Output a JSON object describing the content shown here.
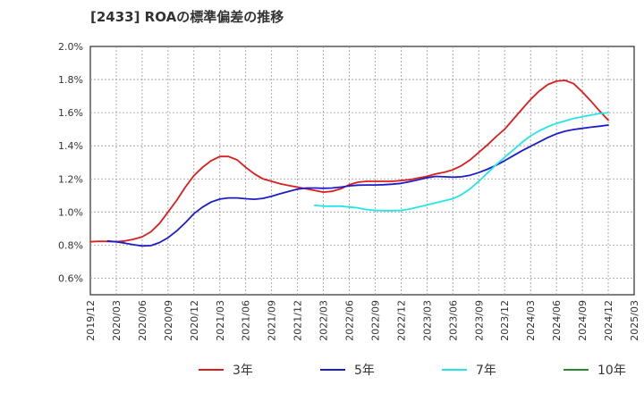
{
  "chart_data": {
    "type": "line",
    "title": "[2433]  ROAの標準偏差の推移",
    "xlabel": "",
    "ylabel": "",
    "ylim": [
      0.5,
      2.0
    ],
    "xlim": [
      "2019/12",
      "2025/03"
    ],
    "y_ticks": [
      "0.6%",
      "0.8%",
      "1.0%",
      "1.2%",
      "1.4%",
      "1.6%",
      "1.8%",
      "2.0%"
    ],
    "x_ticks": [
      "2019/12",
      "2020/03",
      "2020/06",
      "2020/09",
      "2020/12",
      "2021/03",
      "2021/06",
      "2021/09",
      "2021/12",
      "2022/03",
      "2022/06",
      "2022/09",
      "2022/12",
      "2023/03",
      "2023/06",
      "2023/09",
      "2023/12",
      "2024/03",
      "2024/06",
      "2024/09",
      "2024/12",
      "2025/03"
    ],
    "grid": true,
    "legend_position": "bottom",
    "series": [
      {
        "name": "3年",
        "color": "#dd1c1c",
        "x": [
          "2019/12",
          "2020/01",
          "2020/02",
          "2020/03",
          "2020/04",
          "2020/05",
          "2020/06",
          "2020/07",
          "2020/08",
          "2020/09",
          "2020/10",
          "2020/11",
          "2020/12",
          "2021/01",
          "2021/02",
          "2021/03",
          "2021/04",
          "2021/05",
          "2021/06",
          "2021/07",
          "2021/08",
          "2021/09",
          "2021/10",
          "2021/11",
          "2021/12",
          "2022/01",
          "2022/02",
          "2022/03",
          "2022/04",
          "2022/05",
          "2022/06",
          "2022/07",
          "2022/08",
          "2022/09",
          "2022/10",
          "2022/11",
          "2022/12",
          "2023/01",
          "2023/02",
          "2023/03",
          "2023/04",
          "2023/05",
          "2023/06",
          "2023/07",
          "2023/08",
          "2023/09",
          "2023/10",
          "2023/11",
          "2023/12",
          "2024/01",
          "2024/02",
          "2024/03",
          "2024/04",
          "2024/05",
          "2024/06",
          "2024/07",
          "2024/08",
          "2024/09",
          "2024/10",
          "2024/11",
          "2024/12"
        ],
        "values": [
          0.82,
          0.823,
          0.822,
          0.82,
          0.825,
          0.835,
          0.85,
          0.88,
          0.93,
          1.0,
          1.07,
          1.15,
          1.22,
          1.27,
          1.31,
          1.335,
          1.335,
          1.315,
          1.27,
          1.23,
          1.2,
          1.185,
          1.17,
          1.16,
          1.15,
          1.14,
          1.13,
          1.12,
          1.125,
          1.14,
          1.165,
          1.18,
          1.185,
          1.185,
          1.185,
          1.185,
          1.19,
          1.195,
          1.205,
          1.215,
          1.23,
          1.24,
          1.255,
          1.28,
          1.315,
          1.36,
          1.405,
          1.455,
          1.5,
          1.56,
          1.62,
          1.68,
          1.73,
          1.77,
          1.79,
          1.795,
          1.775,
          1.725,
          1.67,
          1.61,
          1.555
        ]
      },
      {
        "name": "5年",
        "color": "#1c1ccc",
        "x": [
          "2020/02",
          "2020/03",
          "2020/04",
          "2020/05",
          "2020/06",
          "2020/07",
          "2020/08",
          "2020/09",
          "2020/10",
          "2020/11",
          "2020/12",
          "2021/01",
          "2021/02",
          "2021/03",
          "2021/04",
          "2021/05",
          "2021/06",
          "2021/07",
          "2021/08",
          "2021/09",
          "2021/10",
          "2021/11",
          "2021/12",
          "2022/01",
          "2022/02",
          "2022/03",
          "2022/04",
          "2022/05",
          "2022/06",
          "2022/07",
          "2022/08",
          "2022/09",
          "2022/10",
          "2022/11",
          "2022/12",
          "2023/01",
          "2023/02",
          "2023/03",
          "2023/04",
          "2023/05",
          "2023/06",
          "2023/07",
          "2023/08",
          "2023/09",
          "2023/10",
          "2023/11",
          "2023/12",
          "2024/01",
          "2024/02",
          "2024/03",
          "2024/04",
          "2024/05",
          "2024/06",
          "2024/07",
          "2024/08",
          "2024/09",
          "2024/10",
          "2024/11",
          "2024/12"
        ],
        "values": [
          0.825,
          0.82,
          0.812,
          0.802,
          0.795,
          0.797,
          0.815,
          0.845,
          0.885,
          0.935,
          0.99,
          1.03,
          1.06,
          1.078,
          1.085,
          1.085,
          1.08,
          1.077,
          1.082,
          1.095,
          1.11,
          1.125,
          1.138,
          1.145,
          1.145,
          1.143,
          1.145,
          1.15,
          1.158,
          1.162,
          1.163,
          1.163,
          1.165,
          1.168,
          1.173,
          1.183,
          1.195,
          1.207,
          1.215,
          1.213,
          1.21,
          1.213,
          1.222,
          1.238,
          1.258,
          1.282,
          1.31,
          1.34,
          1.37,
          1.397,
          1.423,
          1.45,
          1.472,
          1.488,
          1.498,
          1.505,
          1.512,
          1.518,
          1.525
        ]
      },
      {
        "name": "7年",
        "color": "#22e6e6",
        "x": [
          "2022/02",
          "2022/03",
          "2022/04",
          "2022/05",
          "2022/06",
          "2022/07",
          "2022/08",
          "2022/09",
          "2022/10",
          "2022/11",
          "2022/12",
          "2023/01",
          "2023/02",
          "2023/03",
          "2023/04",
          "2023/05",
          "2023/06",
          "2023/07",
          "2023/08",
          "2023/09",
          "2023/10",
          "2023/11",
          "2023/12",
          "2024/01",
          "2024/02",
          "2024/03",
          "2024/04",
          "2024/05",
          "2024/06",
          "2024/07",
          "2024/08",
          "2024/09",
          "2024/10",
          "2024/11",
          "2024/12"
        ],
        "values": [
          1.04,
          1.035,
          1.035,
          1.035,
          1.03,
          1.025,
          1.015,
          1.01,
          1.008,
          1.008,
          1.01,
          1.018,
          1.03,
          1.042,
          1.055,
          1.068,
          1.08,
          1.105,
          1.14,
          1.185,
          1.235,
          1.285,
          1.33,
          1.375,
          1.42,
          1.46,
          1.49,
          1.515,
          1.535,
          1.55,
          1.565,
          1.575,
          1.585,
          1.595,
          1.6
        ]
      },
      {
        "name": "10年",
        "color": "#2a8a2a",
        "x": [],
        "values": []
      }
    ]
  }
}
